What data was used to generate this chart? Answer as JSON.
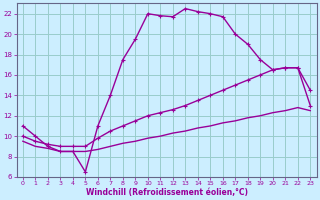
{
  "xlabel": "Windchill (Refroidissement éolien,°C)",
  "bg_color": "#cceeff",
  "line_color": "#990099",
  "grid_color": "#99cccc",
  "xlim": [
    -0.5,
    23.5
  ],
  "ylim": [
    6,
    23
  ],
  "xticks": [
    0,
    1,
    2,
    3,
    4,
    5,
    6,
    7,
    8,
    9,
    10,
    11,
    12,
    13,
    14,
    15,
    16,
    17,
    18,
    19,
    20,
    21,
    22,
    23
  ],
  "yticks": [
    6,
    8,
    10,
    12,
    14,
    16,
    18,
    20,
    22
  ],
  "line1_x": [
    0,
    1,
    2,
    3,
    4,
    5,
    6,
    7,
    8,
    9,
    10,
    11,
    12,
    13,
    14,
    15,
    16,
    17,
    18,
    19,
    20,
    21,
    22,
    23
  ],
  "line1_y": [
    11,
    10,
    9,
    8.5,
    8.5,
    6.5,
    11,
    14,
    17.5,
    19.5,
    22,
    21.8,
    21.7,
    22.5,
    22.2,
    22,
    21.7,
    20,
    19,
    17.5,
    16.5,
    16.7,
    16.7,
    14.5
  ],
  "line2_x": [
    0,
    1,
    2,
    3,
    4,
    5,
    6,
    7,
    8,
    9,
    10,
    11,
    12,
    13,
    14,
    15,
    16,
    17,
    18,
    19,
    20,
    21,
    22,
    23
  ],
  "line2_y": [
    10,
    9.5,
    9.2,
    9.0,
    9.0,
    9.0,
    9.8,
    10.5,
    11.0,
    11.5,
    12.0,
    12.3,
    12.6,
    13.0,
    13.5,
    14.0,
    14.5,
    15.0,
    15.5,
    16.0,
    16.5,
    16.7,
    16.7,
    13.0
  ],
  "line3_x": [
    0,
    1,
    2,
    3,
    4,
    5,
    6,
    7,
    8,
    9,
    10,
    11,
    12,
    13,
    14,
    15,
    16,
    17,
    18,
    19,
    20,
    21,
    22,
    23
  ],
  "line3_y": [
    9.5,
    9.0,
    8.8,
    8.5,
    8.5,
    8.5,
    8.7,
    9.0,
    9.3,
    9.5,
    9.8,
    10.0,
    10.3,
    10.5,
    10.8,
    11.0,
    11.3,
    11.5,
    11.8,
    12.0,
    12.3,
    12.5,
    12.8,
    12.5
  ]
}
